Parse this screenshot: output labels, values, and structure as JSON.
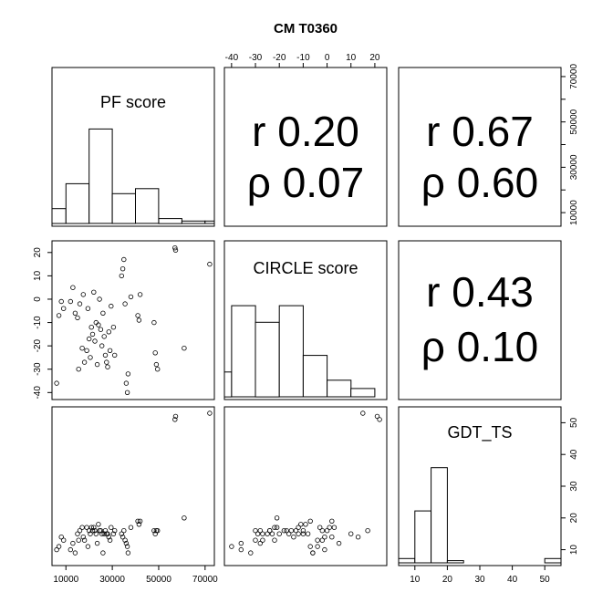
{
  "chart_data": {
    "type": "scatter-matrix",
    "title": "CM T0360",
    "variables": [
      "PF score",
      "CIRCLE score",
      "GDT_TS"
    ],
    "correlations": [
      {
        "pair": [
          "PF score",
          "CIRCLE score"
        ],
        "r_label": "r 0.20",
        "rho_label": "ρ 0.07"
      },
      {
        "pair": [
          "PF score",
          "GDT_TS"
        ],
        "r_label": "r 0.67",
        "rho_label": "ρ 0.60"
      },
      {
        "pair": [
          "CIRCLE score",
          "GDT_TS"
        ],
        "r_label": "r 0.43",
        "rho_label": "ρ 0.10"
      }
    ],
    "axes": {
      "pf": {
        "range": [
          4000,
          74000
        ],
        "ticks": [
          10000,
          30000,
          50000,
          70000
        ],
        "tick_labels": [
          "10000",
          "30000",
          "50000",
          "70000"
        ],
        "right_ticks": [
          10000,
          20000,
          30000,
          40000,
          50000,
          60000,
          70000
        ],
        "right_tick_labels": [
          "10000",
          "",
          "30000",
          "",
          "50000",
          "",
          "70000"
        ]
      },
      "circle": {
        "range": [
          -43,
          25
        ],
        "ticks": [
          -40,
          -30,
          -20,
          -10,
          0,
          10,
          20
        ],
        "tick_labels": [
          "-40",
          "-30",
          "-20",
          "-10",
          "0",
          "10",
          "20"
        ]
      },
      "gdt": {
        "range": [
          5,
          55
        ],
        "ticks": [
          10,
          20,
          30,
          40,
          50
        ],
        "tick_labels": [
          "10",
          "20",
          "30",
          "40",
          "50"
        ]
      }
    },
    "histograms": {
      "pf": {
        "breaks": [
          0,
          10000,
          20000,
          30000,
          40000,
          50000,
          60000,
          70000,
          80000
        ],
        "counts": [
          3,
          8,
          19,
          6,
          7,
          1,
          0.5,
          0.5
        ],
        "max": 20
      },
      "circle": {
        "breaks": [
          -50,
          -40,
          -30,
          -20,
          -10,
          0,
          10,
          20,
          30
        ],
        "counts": [
          3,
          11,
          9,
          11,
          5,
          2,
          1,
          0
        ],
        "max": 12
      },
      "gdt": {
        "breaks": [
          0,
          5,
          10,
          15,
          20,
          25,
          30,
          35,
          40,
          45,
          50,
          55,
          60
        ],
        "counts": [
          1,
          1,
          12,
          22,
          0.5,
          0,
          0,
          0,
          0,
          0,
          1,
          1
        ],
        "max": 23
      }
    },
    "points": [
      {
        "pf": 6000,
        "circle": -36,
        "gdt": 10
      },
      {
        "pf": 7000,
        "circle": -7,
        "gdt": 11
      },
      {
        "pf": 8000,
        "circle": -1,
        "gdt": 14
      },
      {
        "pf": 9000,
        "circle": -4,
        "gdt": 13
      },
      {
        "pf": 12000,
        "circle": -1,
        "gdt": 10
      },
      {
        "pf": 13000,
        "circle": 5,
        "gdt": 12
      },
      {
        "pf": 14000,
        "circle": -6,
        "gdt": 9
      },
      {
        "pf": 15000,
        "circle": -8,
        "gdt": 15
      },
      {
        "pf": 15500,
        "circle": -30,
        "gdt": 13
      },
      {
        "pf": 16000,
        "circle": -2,
        "gdt": 16
      },
      {
        "pf": 17000,
        "circle": -21,
        "gdt": 17
      },
      {
        "pf": 17500,
        "circle": 2,
        "gdt": 14
      },
      {
        "pf": 18000,
        "circle": -27,
        "gdt": 13
      },
      {
        "pf": 19000,
        "circle": -22,
        "gdt": 17
      },
      {
        "pf": 19500,
        "circle": -4,
        "gdt": 11
      },
      {
        "pf": 20000,
        "circle": -17,
        "gdt": 16
      },
      {
        "pf": 20500,
        "circle": -25,
        "gdt": 15
      },
      {
        "pf": 21000,
        "circle": -12,
        "gdt": 17
      },
      {
        "pf": 21500,
        "circle": -15,
        "gdt": 16
      },
      {
        "pf": 22000,
        "circle": 3,
        "gdt": 17
      },
      {
        "pf": 22500,
        "circle": -18,
        "gdt": 16
      },
      {
        "pf": 23000,
        "circle": -10,
        "gdt": 15
      },
      {
        "pf": 23500,
        "circle": -28,
        "gdt": 12
      },
      {
        "pf": 24000,
        "circle": -11,
        "gdt": 18
      },
      {
        "pf": 24500,
        "circle": 0,
        "gdt": 16
      },
      {
        "pf": 25000,
        "circle": -13,
        "gdt": 16
      },
      {
        "pf": 25500,
        "circle": -20,
        "gdt": 15
      },
      {
        "pf": 26000,
        "circle": -6,
        "gdt": 9
      },
      {
        "pf": 26500,
        "circle": -16,
        "gdt": 15
      },
      {
        "pf": 27000,
        "circle": -24,
        "gdt": 16
      },
      {
        "pf": 27500,
        "circle": -27,
        "gdt": 15
      },
      {
        "pf": 28000,
        "circle": -29,
        "gdt": 15
      },
      {
        "pf": 28500,
        "circle": -14,
        "gdt": 14
      },
      {
        "pf": 29000,
        "circle": -22,
        "gdt": 13
      },
      {
        "pf": 29500,
        "circle": -3,
        "gdt": 17
      },
      {
        "pf": 30500,
        "circle": -12,
        "gdt": 15
      },
      {
        "pf": 31000,
        "circle": -24,
        "gdt": 16
      },
      {
        "pf": 34000,
        "circle": 10,
        "gdt": 15
      },
      {
        "pf": 34500,
        "circle": 13,
        "gdt": 14
      },
      {
        "pf": 35000,
        "circle": 17,
        "gdt": 16
      },
      {
        "pf": 35500,
        "circle": -2,
        "gdt": 13
      },
      {
        "pf": 36000,
        "circle": -36,
        "gdt": 12
      },
      {
        "pf": 36500,
        "circle": -40,
        "gdt": 11
      },
      {
        "pf": 36800,
        "circle": -32,
        "gdt": 9
      },
      {
        "pf": 38000,
        "circle": 1,
        "gdt": 17
      },
      {
        "pf": 41000,
        "circle": -7,
        "gdt": 19
      },
      {
        "pf": 41500,
        "circle": -9,
        "gdt": 18
      },
      {
        "pf": 42000,
        "circle": 2,
        "gdt": 19
      },
      {
        "pf": 48000,
        "circle": -10,
        "gdt": 16
      },
      {
        "pf": 48500,
        "circle": -23,
        "gdt": 15
      },
      {
        "pf": 49000,
        "circle": -28,
        "gdt": 16
      },
      {
        "pf": 49500,
        "circle": -30,
        "gdt": 16
      },
      {
        "pf": 57000,
        "circle": 22,
        "gdt": 51
      },
      {
        "pf": 57300,
        "circle": 21,
        "gdt": 52
      },
      {
        "pf": 61000,
        "circle": -21,
        "gdt": 20
      },
      {
        "pf": 72000,
        "circle": 15,
        "gdt": 53
      }
    ]
  }
}
